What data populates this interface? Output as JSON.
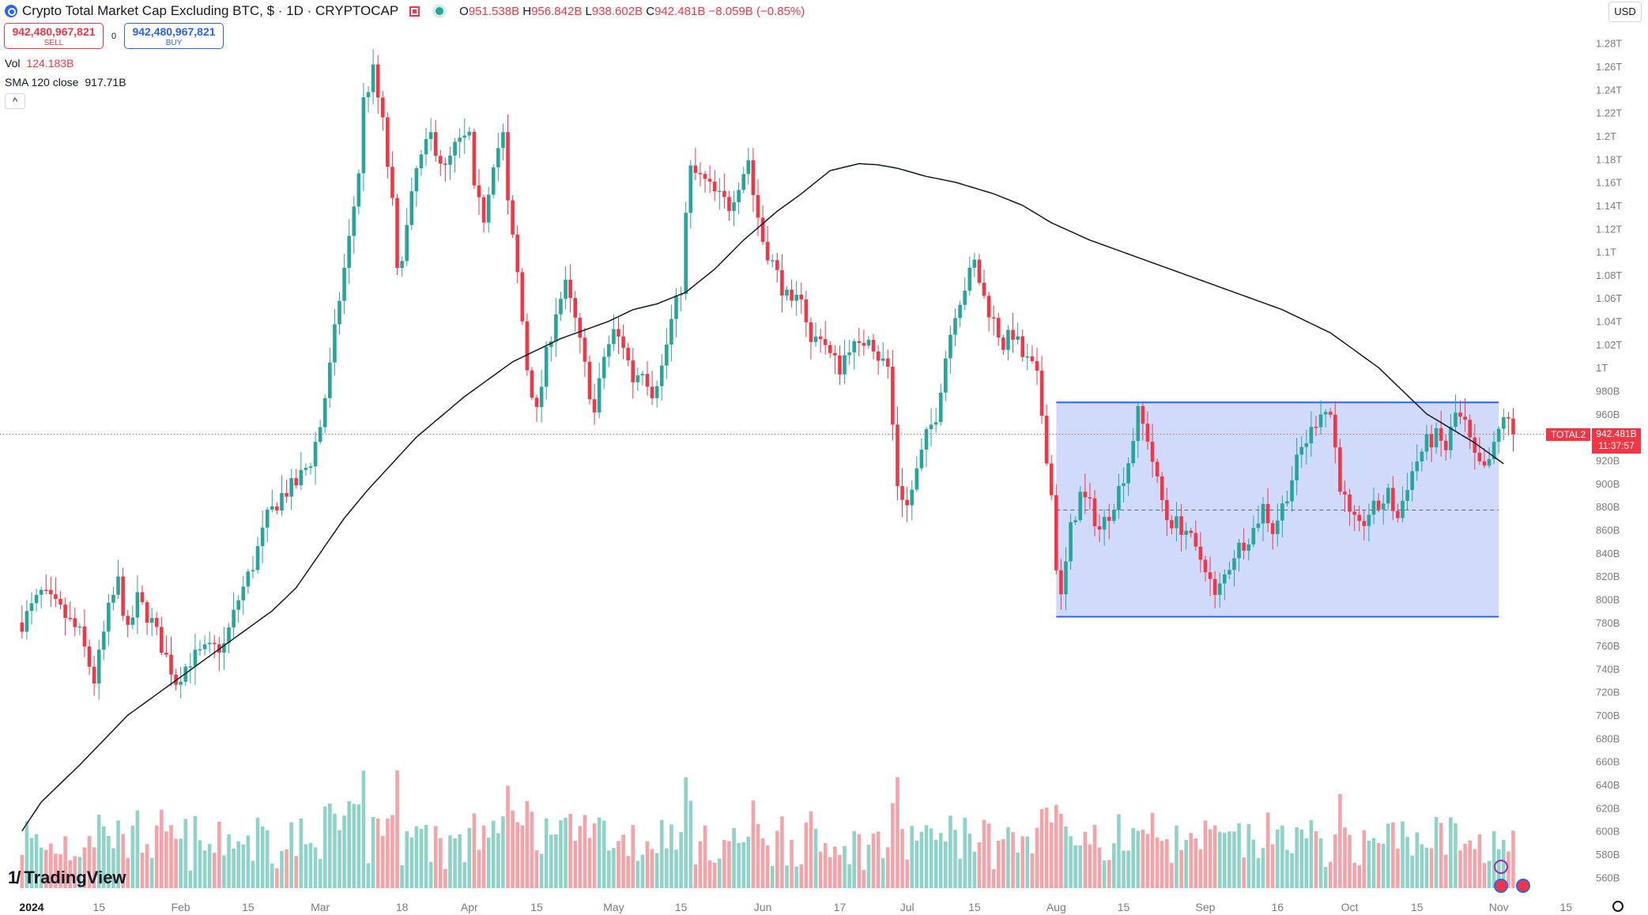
{
  "header": {
    "title": "Crypto Total Market Cap Excluding BTC, $ · 1D · CRYPTOCAP",
    "ohlc": [
      {
        "k": "O",
        "v": "951.538B"
      },
      {
        "k": "H",
        "v": "956.842B"
      },
      {
        "k": "L",
        "v": "938.602B"
      },
      {
        "k": "C",
        "v": "942.481B"
      }
    ],
    "change": "−8.059B (−0.85%)"
  },
  "trade": {
    "sell_price": "942,480,967,821",
    "sell_label": "SELL",
    "spread": "0",
    "buy_price": "942,480,967,821",
    "buy_label": "BUY"
  },
  "indicators": {
    "vol_label": "Vol",
    "vol_value": "124.183B",
    "sma_label": "SMA 120 close",
    "sma_value": "917.71B",
    "collapse": "^"
  },
  "currency": "USD",
  "price_tag": {
    "symbol": "TOTAL2",
    "price": "942.481B",
    "countdown": "11:37:57"
  },
  "logo_text": "TradingView",
  "colors": {
    "up": "#26a69a",
    "down": "#f23645",
    "up_vol": "#8fd3c8",
    "down_vol": "#f4a3a8",
    "range_fill": "#cdd9fb",
    "range_line": "#2962ff",
    "sma": "#131722"
  },
  "chart_data": {
    "type": "candlestick",
    "title": "Crypto Total Market Cap Excluding BTC, $ · 1D · CRYPTOCAP",
    "y_unit": "B",
    "ylim": [
      550,
      1290
    ],
    "y_ticks": [
      "1.28T",
      "1.26T",
      "1.24T",
      "1.22T",
      "1.2T",
      "1.18T",
      "1.16T",
      "1.14T",
      "1.12T",
      "1.1T",
      "1.08T",
      "1.06T",
      "1.04T",
      "1.02T",
      "1T",
      "980B",
      "960B",
      "940B",
      "920B",
      "900B",
      "880B",
      "860B",
      "840B",
      "820B",
      "800B",
      "780B",
      "760B",
      "740B",
      "720B",
      "700B",
      "680B",
      "660B",
      "640B",
      "620B",
      "600B",
      "580B",
      "560B"
    ],
    "x_ticks": [
      {
        "label": "2024",
        "day": 0
      },
      {
        "label": "15",
        "day": 14
      },
      {
        "label": "Feb",
        "day": 31
      },
      {
        "label": "15",
        "day": 45
      },
      {
        "label": "Mar",
        "day": 60
      },
      {
        "label": "18",
        "day": 77
      },
      {
        "label": "Apr",
        "day": 91
      },
      {
        "label": "15",
        "day": 105
      },
      {
        "label": "May",
        "day": 121
      },
      {
        "label": "15",
        "day": 135
      },
      {
        "label": "Jun",
        "day": 152
      },
      {
        "label": "17",
        "day": 168
      },
      {
        "label": "Jul",
        "day": 182
      },
      {
        "label": "15",
        "day": 196
      },
      {
        "label": "Aug",
        "day": 213
      },
      {
        "label": "15",
        "day": 227
      },
      {
        "label": "Sep",
        "day": 244
      },
      {
        "label": "16",
        "day": 259
      },
      {
        "label": "Oct",
        "day": 274
      },
      {
        "label": "15",
        "day": 288
      },
      {
        "label": "Nov",
        "day": 305
      },
      {
        "label": "15",
        "day": 319
      }
    ],
    "close_anchors": [
      [
        -2,
        780
      ],
      [
        2,
        805
      ],
      [
        6,
        790
      ],
      [
        10,
        770
      ],
      [
        13,
        730
      ],
      [
        16,
        790
      ],
      [
        18,
        815
      ],
      [
        20,
        770
      ],
      [
        22,
        800
      ],
      [
        25,
        780
      ],
      [
        27,
        760
      ],
      [
        30,
        730
      ],
      [
        33,
        748
      ],
      [
        36,
        755
      ],
      [
        40,
        760
      ],
      [
        43,
        800
      ],
      [
        46,
        830
      ],
      [
        49,
        870
      ],
      [
        52,
        890
      ],
      [
        55,
        900
      ],
      [
        58,
        920
      ],
      [
        60,
        950
      ],
      [
        62,
        1000
      ],
      [
        64,
        1060
      ],
      [
        66,
        1110
      ],
      [
        68,
        1170
      ],
      [
        69,
        1230
      ],
      [
        71,
        1255
      ],
      [
        73,
        1210
      ],
      [
        75,
        1140
      ],
      [
        76,
        1080
      ],
      [
        78,
        1120
      ],
      [
        80,
        1170
      ],
      [
        83,
        1200
      ],
      [
        86,
        1170
      ],
      [
        88,
        1190
      ],
      [
        91,
        1200
      ],
      [
        92,
        1150
      ],
      [
        94,
        1130
      ],
      [
        96,
        1180
      ],
      [
        98,
        1200
      ],
      [
        99,
        1140
      ],
      [
        101,
        1080
      ],
      [
        103,
        1000
      ],
      [
        105,
        960
      ],
      [
        107,
        1010
      ],
      [
        109,
        1050
      ],
      [
        111,
        1070
      ],
      [
        113,
        1040
      ],
      [
        115,
        1000
      ],
      [
        117,
        960
      ],
      [
        119,
        1010
      ],
      [
        121,
        1030
      ],
      [
        123,
        1020
      ],
      [
        125,
        990
      ],
      [
        127,
        1000
      ],
      [
        129,
        980
      ],
      [
        131,
        1000
      ],
      [
        133,
        1040
      ],
      [
        135,
        1070
      ],
      [
        136,
        1130
      ],
      [
        137,
        1170
      ],
      [
        140,
        1160
      ],
      [
        142,
        1150
      ],
      [
        145,
        1140
      ],
      [
        147,
        1160
      ],
      [
        149,
        1180
      ],
      [
        150,
        1150
      ],
      [
        152,
        1110
      ],
      [
        154,
        1090
      ],
      [
        156,
        1070
      ],
      [
        158,
        1050
      ],
      [
        160,
        1065
      ],
      [
        162,
        1020
      ],
      [
        164,
        1030
      ],
      [
        166,
        1010
      ],
      [
        168,
        1000
      ],
      [
        170,
        1020
      ],
      [
        172,
        1015
      ],
      [
        174,
        1030
      ],
      [
        176,
        1010
      ],
      [
        178,
        1000
      ],
      [
        179,
        950
      ],
      [
        180,
        900
      ],
      [
        182,
        880
      ],
      [
        184,
        910
      ],
      [
        186,
        940
      ],
      [
        188,
        960
      ],
      [
        190,
        1010
      ],
      [
        192,
        1050
      ],
      [
        194,
        1070
      ],
      [
        196,
        1090
      ],
      [
        198,
        1060
      ],
      [
        200,
        1040
      ],
      [
        202,
        1020
      ],
      [
        204,
        1030
      ],
      [
        206,
        1010
      ],
      [
        208,
        1000
      ],
      [
        209,
        990
      ],
      [
        210,
        960
      ],
      [
        212,
        890
      ],
      [
        213,
        830
      ],
      [
        214,
        800
      ],
      [
        216,
        860
      ],
      [
        218,
        890
      ],
      [
        220,
        880
      ],
      [
        222,
        860
      ],
      [
        224,
        875
      ],
      [
        226,
        895
      ],
      [
        228,
        920
      ],
      [
        230,
        960
      ],
      [
        232,
        940
      ],
      [
        234,
        900
      ],
      [
        236,
        870
      ],
      [
        238,
        865
      ],
      [
        240,
        860
      ],
      [
        242,
        840
      ],
      [
        244,
        830
      ],
      [
        246,
        800
      ],
      [
        248,
        820
      ],
      [
        250,
        840
      ],
      [
        252,
        850
      ],
      [
        254,
        860
      ],
      [
        256,
        880
      ],
      [
        258,
        860
      ],
      [
        260,
        880
      ],
      [
        262,
        905
      ],
      [
        264,
        930
      ],
      [
        266,
        945
      ],
      [
        268,
        965
      ],
      [
        270,
        960
      ],
      [
        272,
        900
      ],
      [
        274,
        870
      ],
      [
        276,
        860
      ],
      [
        278,
        875
      ],
      [
        280,
        880
      ],
      [
        282,
        890
      ],
      [
        284,
        870
      ],
      [
        286,
        900
      ],
      [
        288,
        920
      ],
      [
        290,
        935
      ],
      [
        292,
        940
      ],
      [
        294,
        930
      ],
      [
        296,
        960
      ],
      [
        298,
        950
      ],
      [
        300,
        920
      ],
      [
        302,
        910
      ],
      [
        304,
        930
      ],
      [
        306,
        960
      ],
      [
        308,
        942
      ]
    ],
    "sma120": [
      [
        -2,
        600
      ],
      [
        2,
        625
      ],
      [
        10,
        657
      ],
      [
        20,
        700
      ],
      [
        30,
        730
      ],
      [
        40,
        760
      ],
      [
        50,
        790
      ],
      [
        55,
        810
      ],
      [
        60,
        840
      ],
      [
        65,
        870
      ],
      [
        70,
        895
      ],
      [
        80,
        940
      ],
      [
        90,
        975
      ],
      [
        100,
        1005
      ],
      [
        110,
        1025
      ],
      [
        120,
        1040
      ],
      [
        125,
        1050
      ],
      [
        130,
        1055
      ],
      [
        136,
        1065
      ],
      [
        142,
        1085
      ],
      [
        148,
        1110
      ],
      [
        155,
        1135
      ],
      [
        160,
        1150
      ],
      [
        166,
        1170
      ],
      [
        172,
        1176
      ],
      [
        176,
        1175
      ],
      [
        180,
        1172
      ],
      [
        186,
        1165
      ],
      [
        192,
        1160
      ],
      [
        200,
        1150
      ],
      [
        206,
        1140
      ],
      [
        212,
        1125
      ],
      [
        220,
        1110
      ],
      [
        230,
        1095
      ],
      [
        240,
        1080
      ],
      [
        250,
        1065
      ],
      [
        260,
        1050
      ],
      [
        270,
        1030
      ],
      [
        275,
        1015
      ],
      [
        280,
        1000
      ],
      [
        285,
        980
      ],
      [
        290,
        960
      ],
      [
        300,
        935
      ],
      [
        306,
        917
      ]
    ],
    "range_box": {
      "day_start": 213,
      "day_end": 305,
      "top": 970,
      "bottom": 785,
      "midline": 877
    },
    "last_close": 942.481
  }
}
